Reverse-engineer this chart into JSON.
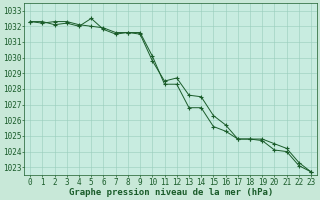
{
  "title": "Graphe pression niveau de la mer (hPa)",
  "background_color": "#c8e8d8",
  "plot_bg_color": "#c8ece0",
  "grid_color": "#99ccbb",
  "line_color": "#1a5c2a",
  "marker_color": "#1a5c2a",
  "xlim": [
    -0.5,
    23.5
  ],
  "ylim": [
    1022.5,
    1033.5
  ],
  "yticks": [
    1023,
    1024,
    1025,
    1026,
    1027,
    1028,
    1029,
    1030,
    1031,
    1032,
    1033
  ],
  "xticks": [
    0,
    1,
    2,
    3,
    4,
    5,
    6,
    7,
    8,
    9,
    10,
    11,
    12,
    13,
    14,
    15,
    16,
    17,
    18,
    19,
    20,
    21,
    22,
    23
  ],
  "series1_x": [
    0,
    1,
    2,
    3,
    4,
    5,
    6,
    7,
    8,
    9,
    10,
    11,
    12,
    13,
    14,
    15,
    16,
    17,
    18,
    19,
    20,
    21,
    22,
    23
  ],
  "series1_y": [
    1032.3,
    1032.3,
    1032.1,
    1032.2,
    1032.0,
    1032.5,
    1031.8,
    1031.5,
    1031.6,
    1031.5,
    1029.8,
    1028.5,
    1028.7,
    1027.6,
    1027.5,
    1026.3,
    1025.7,
    1024.8,
    1024.8,
    1024.7,
    1024.1,
    1024.0,
    1023.1,
    1022.7
  ],
  "series2_x": [
    0,
    1,
    2,
    3,
    4,
    5,
    6,
    7,
    8,
    9,
    10,
    11,
    12,
    13,
    14,
    15,
    16,
    17,
    18,
    19,
    20,
    21,
    22,
    23
  ],
  "series2_y": [
    1032.3,
    1032.2,
    1032.3,
    1032.3,
    1032.1,
    1032.0,
    1031.9,
    1031.6,
    1031.6,
    1031.6,
    1030.1,
    1028.3,
    1028.3,
    1026.8,
    1026.8,
    1025.6,
    1025.3,
    1024.8,
    1024.8,
    1024.8,
    1024.5,
    1024.2,
    1023.3,
    1022.7
  ],
  "tick_fontsize": 5.5,
  "title_fontsize": 6.5
}
